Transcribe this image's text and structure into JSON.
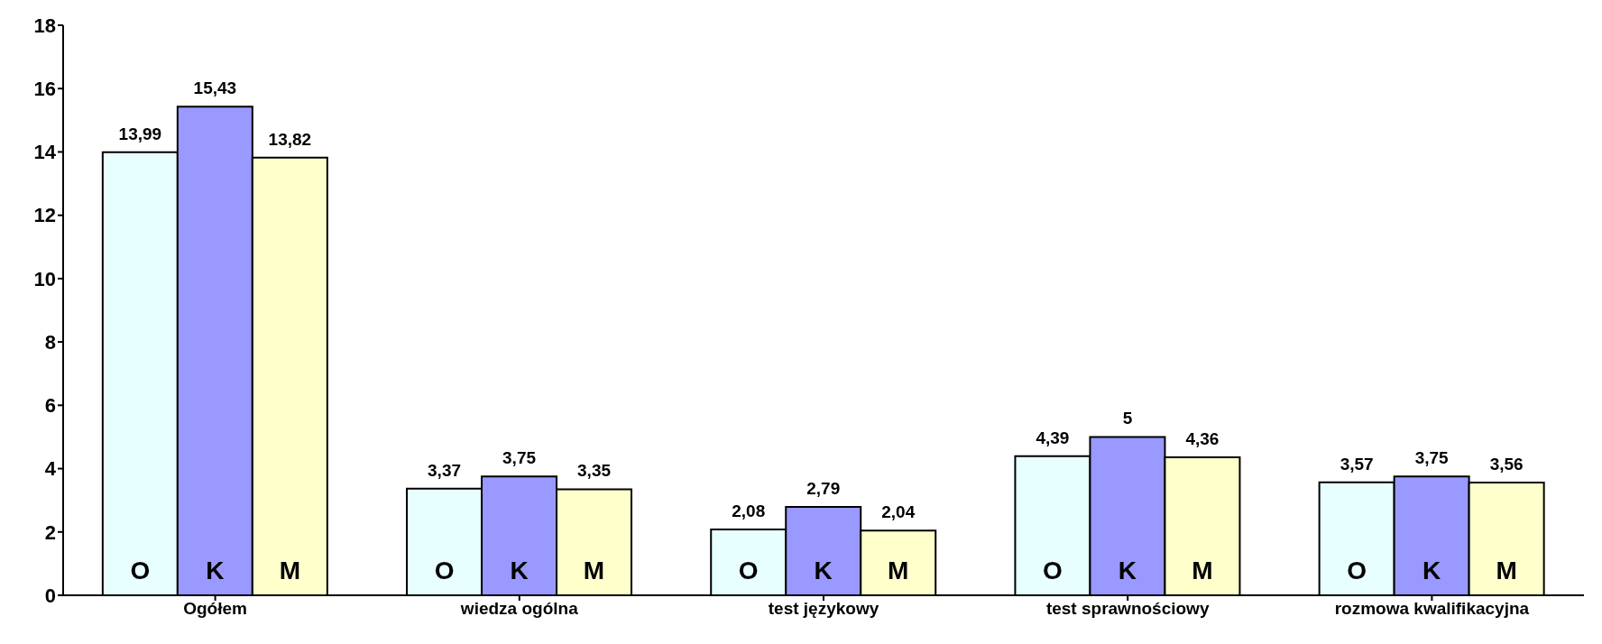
{
  "chart_data": {
    "type": "bar",
    "categories": [
      "Ogółem",
      "wiedza ogólna",
      "test językowy",
      "test sprawnościowy",
      "rozmowa kwalifikacyjna"
    ],
    "series": [
      {
        "name": "O",
        "color": "#e8ffff",
        "values": [
          13.99,
          3.37,
          2.08,
          4.39,
          3.57
        ],
        "value_labels": [
          "13,99",
          "3,37",
          "2,08",
          "4,39",
          "3,57"
        ]
      },
      {
        "name": "K",
        "color": "#9999ff",
        "values": [
          15.43,
          3.75,
          2.79,
          5,
          3.75
        ],
        "value_labels": [
          "15,43",
          "3,75",
          "2,79",
          "5",
          "3,75"
        ]
      },
      {
        "name": "M",
        "color": "#ffffcc",
        "values": [
          13.82,
          3.35,
          2.04,
          4.36,
          3.56
        ],
        "value_labels": [
          "13,82",
          "3,35",
          "2,04",
          "4,36",
          "3,56"
        ]
      }
    ],
    "ylim": [
      0,
      18
    ],
    "yticks": [
      0,
      2,
      4,
      6,
      8,
      10,
      12,
      14,
      16,
      18
    ],
    "grid": false,
    "legend": false
  }
}
